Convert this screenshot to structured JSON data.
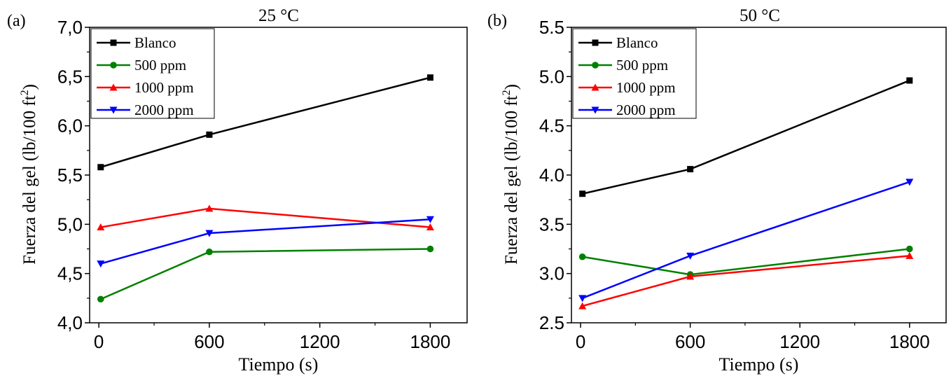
{
  "chart_data": [
    {
      "type": "line",
      "panel_label": "(a)",
      "title": "25 °C",
      "xlabel": "Tiempo (s)",
      "ylabel_main": "Fuerza del gel (lb/100 ft",
      "ylabel_sup": "2",
      "ylabel_end": ")",
      "x": [
        10,
        600,
        1800
      ],
      "xlim": [
        -50,
        2000
      ],
      "ylim": [
        4.0,
        7.0
      ],
      "xticks": [
        0,
        600,
        1200,
        1800
      ],
      "xtick_labels": [
        "0",
        "600",
        "1200",
        "1800"
      ],
      "yticks": [
        4.0,
        4.5,
        5.0,
        5.5,
        6.0,
        6.5,
        7.0
      ],
      "ytick_labels": [
        "4,0",
        "4,5",
        "5,0",
        "5,5",
        "6,0",
        "6,5",
        "7,0"
      ],
      "legend_position": "top-left",
      "series": [
        {
          "name": "Blanco",
          "color": "#000000",
          "marker": "square",
          "values": [
            5.58,
            5.91,
            6.49
          ]
        },
        {
          "name": "500 ppm",
          "color": "#008000",
          "marker": "circle",
          "values": [
            4.24,
            4.72,
            4.75
          ]
        },
        {
          "name": "1000 ppm",
          "color": "#ff0000",
          "marker": "triangle-up",
          "values": [
            4.97,
            5.16,
            4.97
          ]
        },
        {
          "name": "2000 ppm",
          "color": "#0000ff",
          "marker": "triangle-down",
          "values": [
            4.6,
            4.91,
            5.05
          ]
        }
      ]
    },
    {
      "type": "line",
      "panel_label": "(b)",
      "title": "50 °C",
      "xlabel": "Tiempo (s)",
      "ylabel_main": "Fuerza del gel (lb/100 ft",
      "ylabel_sup": "2",
      "ylabel_end": ")",
      "x": [
        10,
        600,
        1800
      ],
      "xlim": [
        -50,
        2000
      ],
      "ylim": [
        2.5,
        5.5
      ],
      "xticks": [
        0,
        600,
        1200,
        1800
      ],
      "xtick_labels": [
        "0",
        "600",
        "1200",
        "1800"
      ],
      "yticks": [
        2.5,
        3.0,
        3.5,
        4.0,
        4.5,
        5.0,
        5.5
      ],
      "ytick_labels": [
        "2.5",
        "3.0",
        "3.5",
        "4.0",
        "4.5",
        "5.0",
        "5.5"
      ],
      "legend_position": "top-left",
      "series": [
        {
          "name": "Blanco",
          "color": "#000000",
          "marker": "square",
          "values": [
            3.81,
            4.06,
            4.96
          ]
        },
        {
          "name": "500 ppm",
          "color": "#008000",
          "marker": "circle",
          "values": [
            3.17,
            2.99,
            3.25
          ]
        },
        {
          "name": "1000 ppm",
          "color": "#ff0000",
          "marker": "triangle-up",
          "values": [
            2.67,
            2.97,
            3.18
          ]
        },
        {
          "name": "2000 ppm",
          "color": "#0000ff",
          "marker": "triangle-down",
          "values": [
            2.75,
            3.18,
            3.93
          ]
        }
      ]
    }
  ]
}
